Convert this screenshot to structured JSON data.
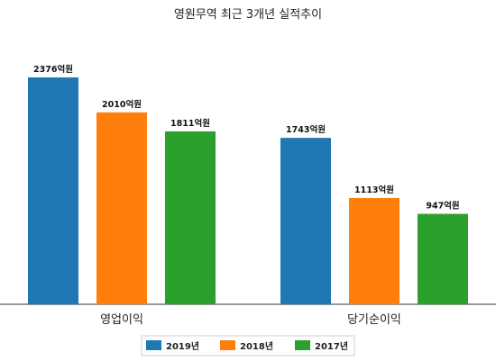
{
  "chart_data": {
    "type": "bar",
    "title": "영원무역 최근 3개년 실적추이",
    "categories": [
      "영업이익",
      "당기순이익"
    ],
    "series": [
      {
        "name": "2019년",
        "color": "#1f77b4",
        "values": [
          2376,
          1743
        ],
        "labels": [
          "2376억원",
          "1743억원"
        ]
      },
      {
        "name": "2018년",
        "color": "#ff7f0e",
        "values": [
          2010,
          1113
        ],
        "labels": [
          "2010억원",
          "1113억원"
        ]
      },
      {
        "name": "2017년",
        "color": "#2ca02c",
        "values": [
          1811,
          947
        ],
        "labels": [
          "1811억원",
          "947억원"
        ]
      }
    ],
    "ylim": [
      0,
      2376
    ],
    "grid": false,
    "legend": "bottom-center"
  }
}
